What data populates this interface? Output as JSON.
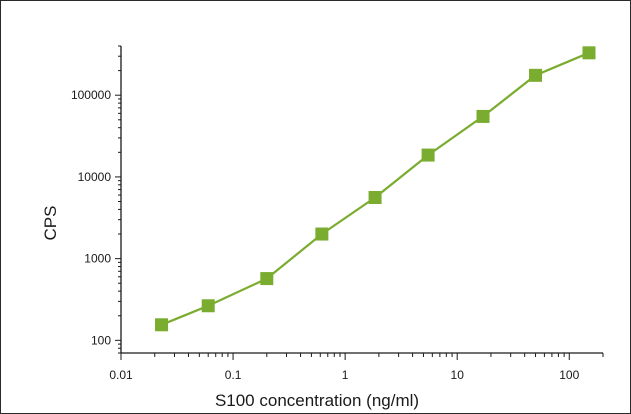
{
  "chart_data": {
    "type": "line",
    "title": "",
    "xlabel": "S100 concentration (ng/ml)",
    "ylabel": "CPS",
    "x_scale": "log",
    "y_scale": "log",
    "xlim": [
      0.01,
      200
    ],
    "ylim": [
      70,
      400000
    ],
    "x_ticks": [
      {
        "value": 0.01,
        "label": "0.01"
      },
      {
        "value": 0.1,
        "label": "0.1"
      },
      {
        "value": 1,
        "label": "1"
      },
      {
        "value": 10,
        "label": "10"
      },
      {
        "value": 100,
        "label": "100"
      }
    ],
    "y_ticks": [
      {
        "value": 100,
        "label": "100"
      },
      {
        "value": 1000,
        "label": "1000"
      },
      {
        "value": 10000,
        "label": "10000"
      },
      {
        "value": 100000,
        "label": "100000"
      }
    ],
    "grid": false,
    "legend": "none",
    "series": [
      {
        "color": "#7aac2f",
        "marker": "square",
        "points": [
          {
            "x": 0.023,
            "y": 155
          },
          {
            "x": 0.06,
            "y": 265
          },
          {
            "x": 0.2,
            "y": 570
          },
          {
            "x": 0.62,
            "y": 2000
          },
          {
            "x": 1.85,
            "y": 5600
          },
          {
            "x": 5.5,
            "y": 18500
          },
          {
            "x": 17,
            "y": 55000
          },
          {
            "x": 50,
            "y": 175000
          },
          {
            "x": 150,
            "y": 330000
          }
        ]
      }
    ]
  }
}
